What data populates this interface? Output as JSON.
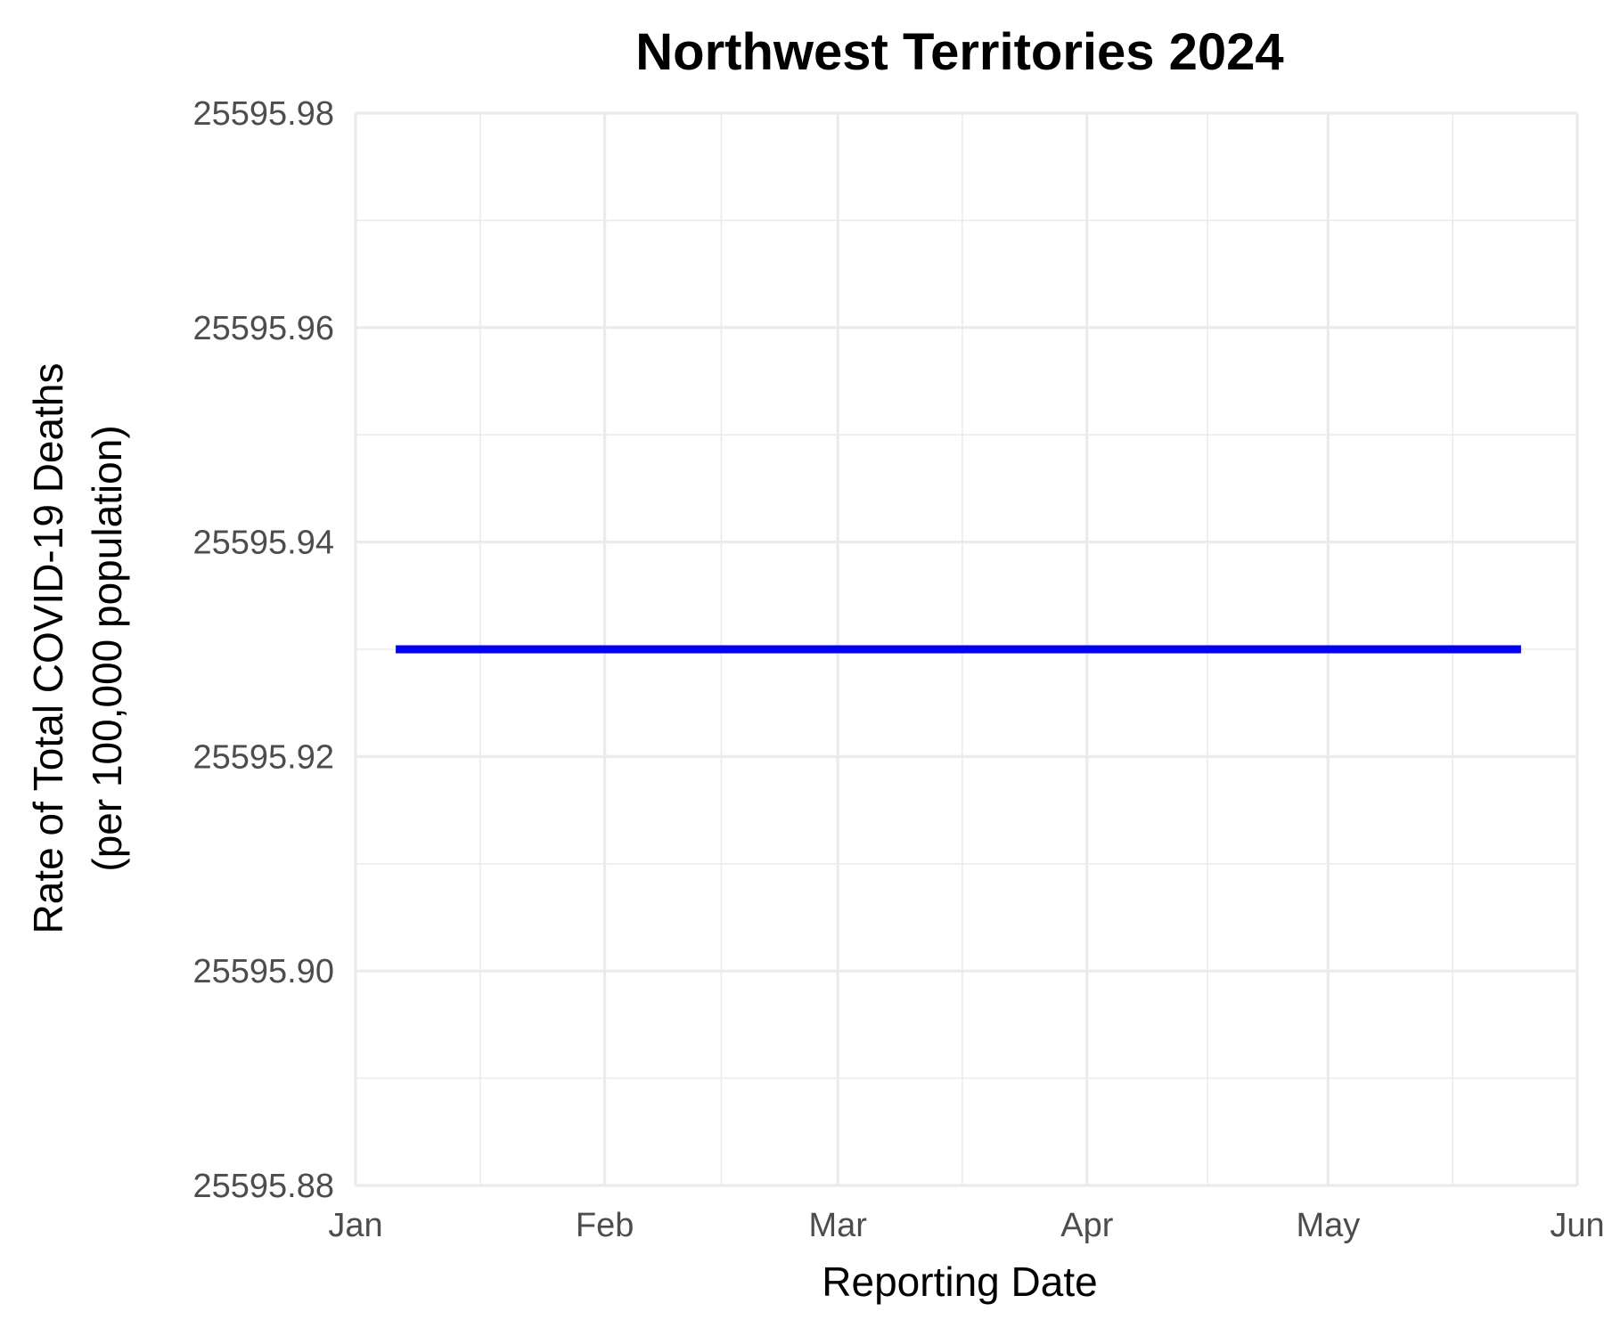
{
  "chart_data": {
    "type": "line",
    "title": "Northwest Territories 2024",
    "xlabel": "Reporting Date",
    "ylabel": [
      "Rate of Total COVID-19 Deaths",
      "(per 100,000 population)"
    ],
    "x_ticks": [
      "Jan",
      "Feb",
      "Mar",
      "Apr",
      "May",
      "Jun"
    ],
    "x_range": [
      "2024-01-01",
      "2024-06-01"
    ],
    "y_ticks": [
      "25595.98",
      "25595.96",
      "25595.94",
      "25595.92",
      "25595.90",
      "25595.88"
    ],
    "ylim": [
      25595.88,
      25595.98
    ],
    "grid": true,
    "series": [
      {
        "color": "#0000ff",
        "x": [
          "2024-01-06",
          "2024-05-25"
        ],
        "values": [
          25595.93,
          25595.93
        ]
      }
    ]
  }
}
